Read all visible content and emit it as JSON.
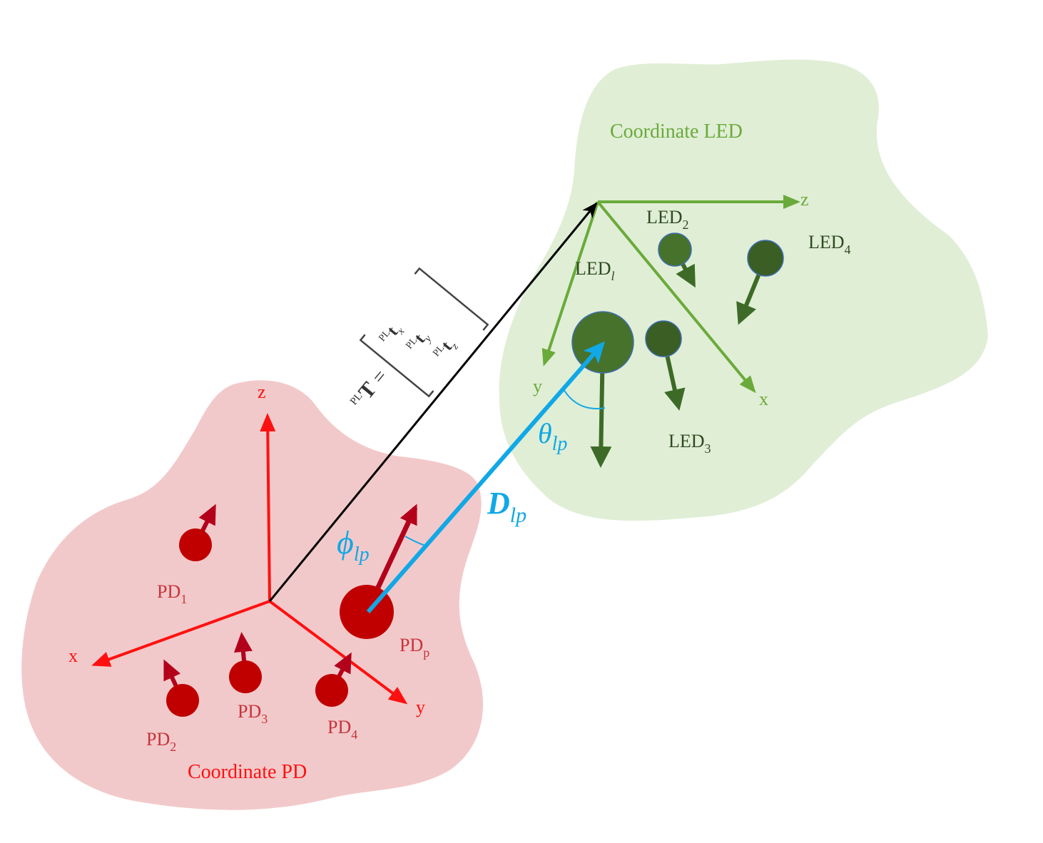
{
  "regions": {
    "led_title": "Coordinate LED",
    "pd_title": "Coordinate PD",
    "led_fill": "#e0eed6",
    "pd_fill": "#f2c9ca"
  },
  "led_axes": {
    "z": "z",
    "y": "y",
    "x": "x",
    "color": "#6aaa3a"
  },
  "pd_axes": {
    "z": "z",
    "x": "x",
    "y": "y",
    "color": "#ff1010"
  },
  "leds": {
    "led_l": {
      "base": "LED",
      "sub": "l"
    },
    "led_2": {
      "base": "LED",
      "sub": "2"
    },
    "led_3": {
      "base": "LED",
      "sub": "3"
    },
    "led_4": {
      "base": "LED",
      "sub": "4"
    },
    "color": "#3d6b27"
  },
  "pds": {
    "pd_1": {
      "base": "PD",
      "sub": "1"
    },
    "pd_2": {
      "base": "PD",
      "sub": "2"
    },
    "pd_3": {
      "base": "PD",
      "sub": "3"
    },
    "pd_4": {
      "base": "PD",
      "sub": "4"
    },
    "pd_p": {
      "base": "PD",
      "sub": "p"
    },
    "color": "#c00000"
  },
  "math": {
    "theta": {
      "base": "θ",
      "sub": "lp"
    },
    "phi": {
      "base": "ϕ",
      "sub": "lp"
    },
    "distance": {
      "base": "D",
      "sub": "lp"
    },
    "translation": {
      "lhs_sup": "PL",
      "lhs": "T",
      "eq": "=",
      "row_x": {
        "sup": "PL",
        "base": "t",
        "sub": "x"
      },
      "row_y": {
        "sup": "PL",
        "base": "t",
        "sub": "y"
      },
      "row_z": {
        "sup": "PL",
        "base": "t",
        "sub": "z"
      }
    }
  }
}
